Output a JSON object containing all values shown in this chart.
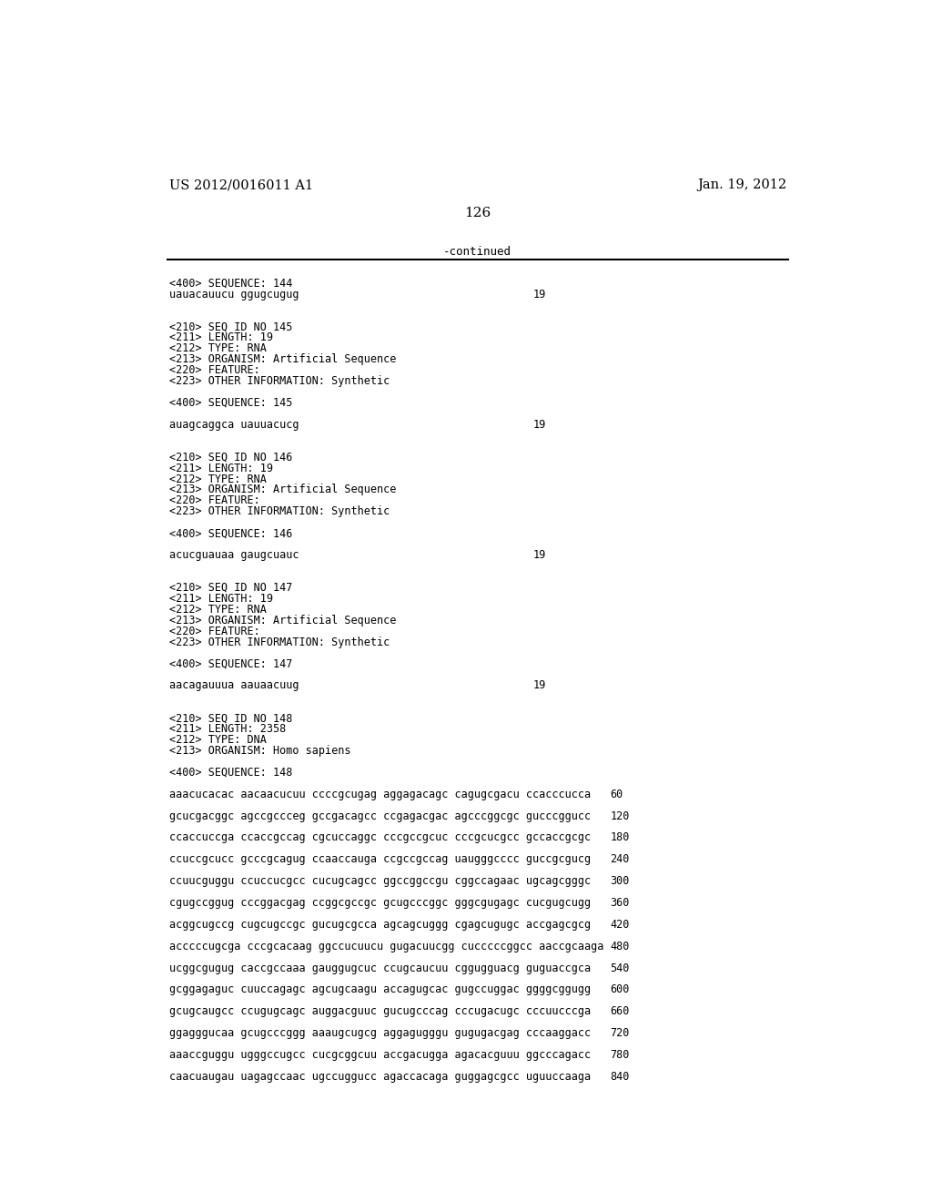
{
  "page_left": "US 2012/0016011 A1",
  "page_right": "Jan. 19, 2012",
  "page_number": "126",
  "continued_text": "-continued",
  "background_color": "#ffffff",
  "text_color": "#000000",
  "header_fontsize": 10.5,
  "body_fontsize": 8.5,
  "page_num_fontsize": 11,
  "content": [
    {
      "type": "seq_header",
      "text": "<400> SEQUENCE: 144"
    },
    {
      "type": "seq_data",
      "text": "uauacauucu ggugcugug",
      "num": "19"
    },
    {
      "type": "blank"
    },
    {
      "type": "blank"
    },
    {
      "type": "entry_line",
      "text": "<210> SEQ ID NO 145"
    },
    {
      "type": "entry_line",
      "text": "<211> LENGTH: 19"
    },
    {
      "type": "entry_line",
      "text": "<212> TYPE: RNA"
    },
    {
      "type": "entry_line",
      "text": "<213> ORGANISM: Artificial Sequence"
    },
    {
      "type": "entry_line",
      "text": "<220> FEATURE:"
    },
    {
      "type": "entry_line",
      "text": "<223> OTHER INFORMATION: Synthetic"
    },
    {
      "type": "blank"
    },
    {
      "type": "seq_header",
      "text": "<400> SEQUENCE: 145"
    },
    {
      "type": "blank"
    },
    {
      "type": "seq_data",
      "text": "auagcaggca uauuacucg",
      "num": "19"
    },
    {
      "type": "blank"
    },
    {
      "type": "blank"
    },
    {
      "type": "entry_line",
      "text": "<210> SEQ ID NO 146"
    },
    {
      "type": "entry_line",
      "text": "<211> LENGTH: 19"
    },
    {
      "type": "entry_line",
      "text": "<212> TYPE: RNA"
    },
    {
      "type": "entry_line",
      "text": "<213> ORGANISM: Artificial Sequence"
    },
    {
      "type": "entry_line",
      "text": "<220> FEATURE:"
    },
    {
      "type": "entry_line",
      "text": "<223> OTHER INFORMATION: Synthetic"
    },
    {
      "type": "blank"
    },
    {
      "type": "seq_header",
      "text": "<400> SEQUENCE: 146"
    },
    {
      "type": "blank"
    },
    {
      "type": "seq_data",
      "text": "acucguauaa gaugcuauc",
      "num": "19"
    },
    {
      "type": "blank"
    },
    {
      "type": "blank"
    },
    {
      "type": "entry_line",
      "text": "<210> SEQ ID NO 147"
    },
    {
      "type": "entry_line",
      "text": "<211> LENGTH: 19"
    },
    {
      "type": "entry_line",
      "text": "<212> TYPE: RNA"
    },
    {
      "type": "entry_line",
      "text": "<213> ORGANISM: Artificial Sequence"
    },
    {
      "type": "entry_line",
      "text": "<220> FEATURE:"
    },
    {
      "type": "entry_line",
      "text": "<223> OTHER INFORMATION: Synthetic"
    },
    {
      "type": "blank"
    },
    {
      "type": "seq_header",
      "text": "<400> SEQUENCE: 147"
    },
    {
      "type": "blank"
    },
    {
      "type": "seq_data",
      "text": "aacagauuua aauaacuug",
      "num": "19"
    },
    {
      "type": "blank"
    },
    {
      "type": "blank"
    },
    {
      "type": "entry_line",
      "text": "<210> SEQ ID NO 148"
    },
    {
      "type": "entry_line",
      "text": "<211> LENGTH: 2358"
    },
    {
      "type": "entry_line",
      "text": "<212> TYPE: DNA"
    },
    {
      "type": "entry_line",
      "text": "<213> ORGANISM: Homo sapiens"
    },
    {
      "type": "blank"
    },
    {
      "type": "seq_header",
      "text": "<400> SEQUENCE: 148"
    },
    {
      "type": "blank"
    },
    {
      "type": "seq_data",
      "text": "aaacucacac aacaacucuu ccccgcugag aggagacagc cagugcgacu ccacccucca",
      "num": "60"
    },
    {
      "type": "blank"
    },
    {
      "type": "seq_data",
      "text": "gcucgacggc agccgccceg gccgacagcc ccgagacgac agcccggcgc gucccggucc",
      "num": "120"
    },
    {
      "type": "blank"
    },
    {
      "type": "seq_data",
      "text": "ccaccuccga ccaccgccag cgcuccaggc cccgccgcuc cccgcucgcc gccaccgcgc",
      "num": "180"
    },
    {
      "type": "blank"
    },
    {
      "type": "seq_data",
      "text": "ccuccgcucc gcccgcagug ccaaccauga ccgccgccag uaugggcccc guccgcgucg",
      "num": "240"
    },
    {
      "type": "blank"
    },
    {
      "type": "seq_data",
      "text": "ccuucguggu ccuccucgcc cucugcagcc ggccggccgu cggccagaac ugcagcgggc",
      "num": "300"
    },
    {
      "type": "blank"
    },
    {
      "type": "seq_data",
      "text": "cgugccggug cccggacgag ccggcgccgc gcugcccggc gggcgugagc cucgugcugg",
      "num": "360"
    },
    {
      "type": "blank"
    },
    {
      "type": "seq_data",
      "text": "acggcugccg cugcugccgc gucugcgcca agcagcuggg cgagcugugc accgagcgcg",
      "num": "420"
    },
    {
      "type": "blank"
    },
    {
      "type": "seq_data",
      "text": "acccccugcga cccgcacaag ggccucuucu gugacuucgg cucccccggcc aaccgcaaga",
      "num": "480"
    },
    {
      "type": "blank"
    },
    {
      "type": "seq_data",
      "text": "ucggcgugug caccgccaaa gauggugcuc ccugcaucuu cggugguacg guguaccgca",
      "num": "540"
    },
    {
      "type": "blank"
    },
    {
      "type": "seq_data",
      "text": "gcggagaguc cuuccagagc agcugcaagu accagugcac gugccuggac ggggcggugg",
      "num": "600"
    },
    {
      "type": "blank"
    },
    {
      "type": "seq_data",
      "text": "gcugcaugcc ccugugcagc auggacguuc gucugcccag cccugacugc cccuucccga",
      "num": "660"
    },
    {
      "type": "blank"
    },
    {
      "type": "seq_data",
      "text": "ggagggucaa gcugcccggg aaaugcugcg aggagugggu gugugacgag cccaaggacc",
      "num": "720"
    },
    {
      "type": "blank"
    },
    {
      "type": "seq_data",
      "text": "aaaccguggu ugggccugcc cucgcggcuu accgacugga agacacguuu ggcccagacc",
      "num": "780"
    },
    {
      "type": "blank"
    },
    {
      "type": "seq_data",
      "text": "caacuaugau uagagccaac ugccuggucc agaccacaga guggagcgcc uguuccaaga",
      "num": "840"
    }
  ]
}
